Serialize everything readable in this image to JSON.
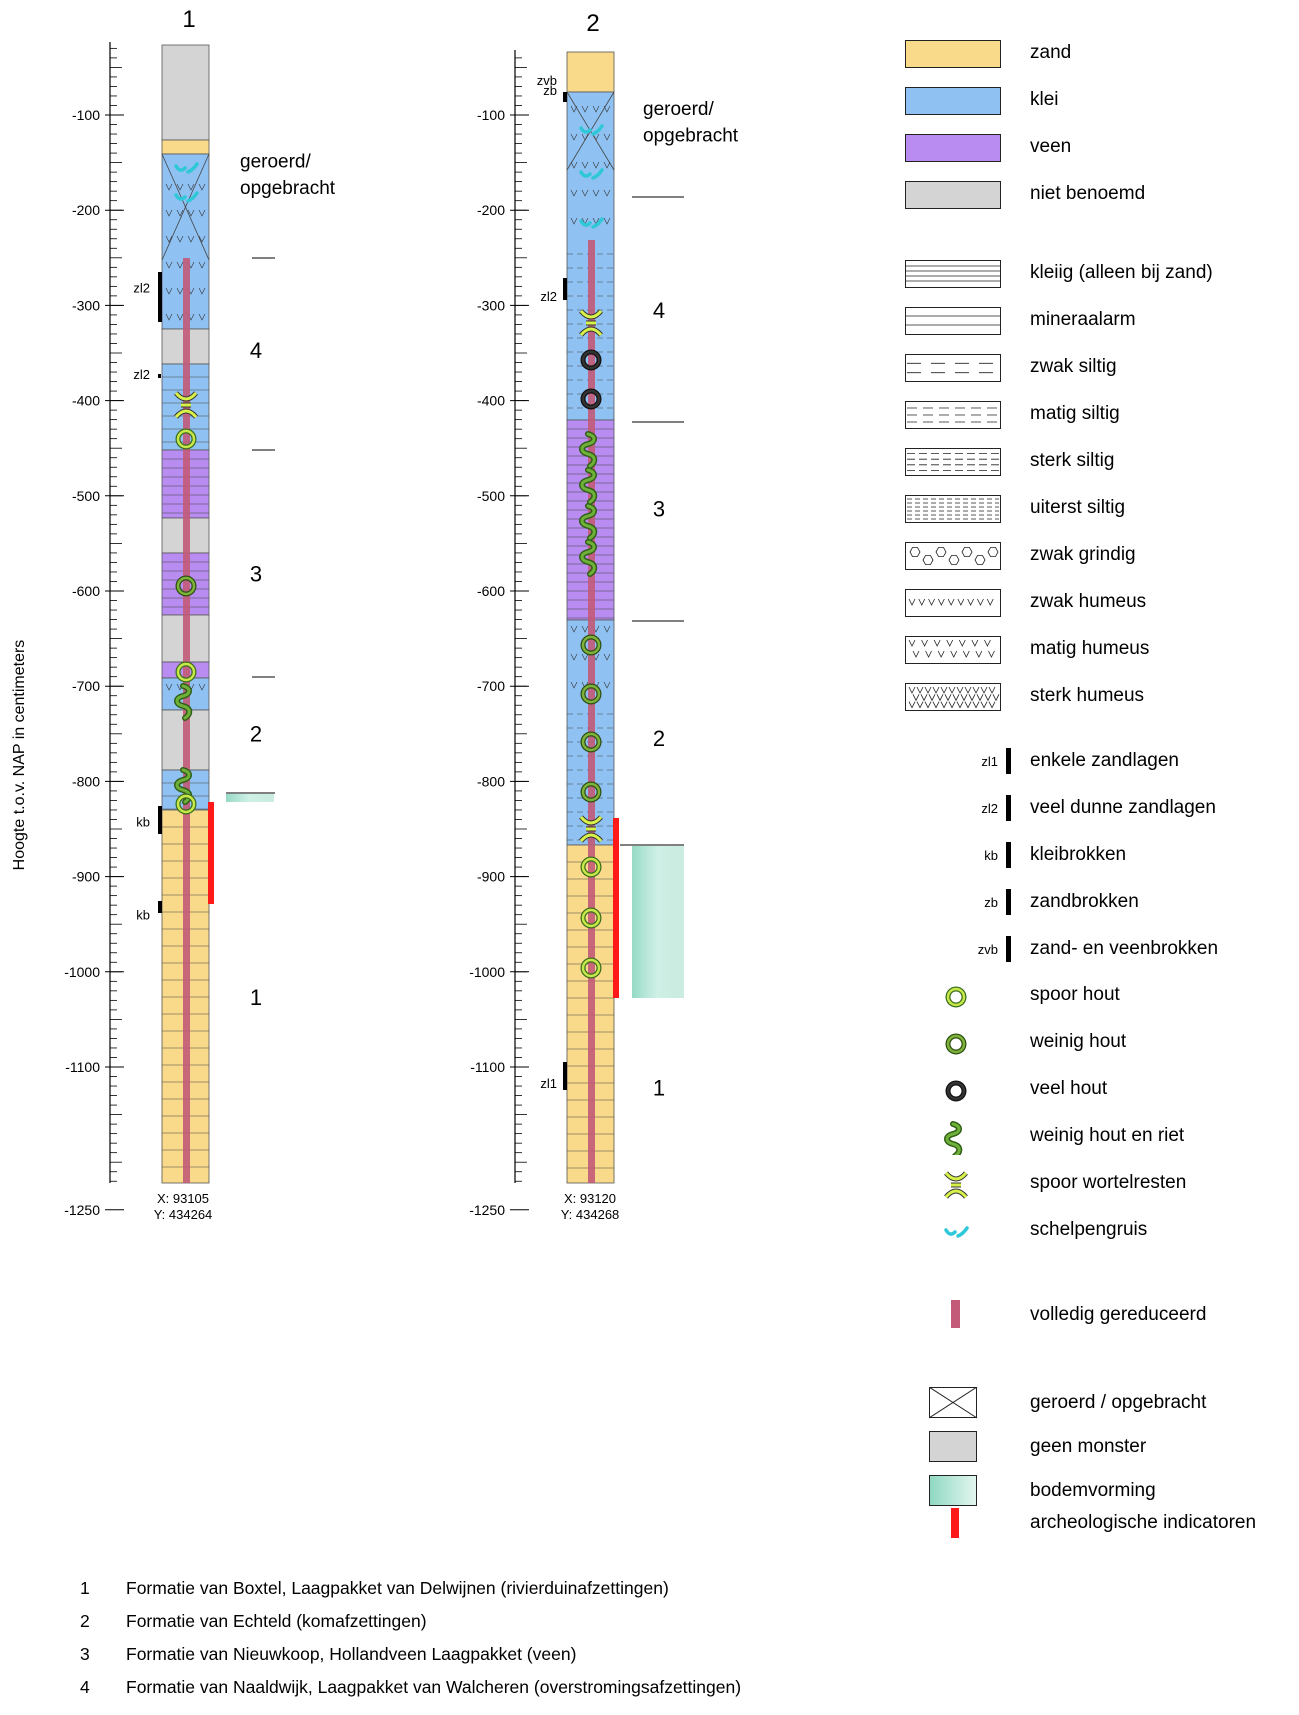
{
  "y_axis_title": "Hoogte t.o.v. NAP in centimeters",
  "colors": {
    "zand": "#f9d98a",
    "klei": "#8fc1f2",
    "veen": "#b88cf0",
    "niet_benoemd": "#d4d4d4",
    "reduced": "#c25a78",
    "archeo": "#ff1a1a",
    "bodem": "#9fdcc8",
    "wood": "#c8e84a",
    "wood_dark": "#3a6e1e",
    "shell": "#2fc8d8"
  },
  "boreholes": [
    {
      "id": "1",
      "title": "1",
      "coord_x": "X: 93105",
      "coord_y": "Y: 434264",
      "ticks": [
        "-100",
        "-200",
        "-300",
        "-400",
        "-500",
        "-600",
        "-700",
        "-800",
        "-900",
        "-1000",
        "-1100",
        "-1250"
      ],
      "unit_labels": [
        {
          "text": "geroerd/",
          "depth": -155
        },
        {
          "text": "opgebracht",
          "depth": -183
        },
        {
          "text": "4",
          "depth": -355
        },
        {
          "text": "3",
          "depth": -590
        },
        {
          "text": "2",
          "depth": -758
        },
        {
          "text": "1",
          "depth": -1035
        }
      ],
      "side_labels": [
        {
          "text": "zl2",
          "depth": -281
        },
        {
          "text": "zl2",
          "depth": -372
        },
        {
          "text": "kb",
          "depth": -842
        },
        {
          "text": "kb",
          "depth": -940
        }
      ]
    },
    {
      "id": "2",
      "title": "2",
      "coord_x": "X: 93120",
      "coord_y": "Y: 434268",
      "ticks": [
        "-100",
        "-200",
        "-300",
        "-400",
        "-500",
        "-600",
        "-700",
        "-800",
        "-900",
        "-1000",
        "-1100",
        "-1250"
      ],
      "unit_labels": [
        {
          "text": "geroerd/",
          "depth": -100
        },
        {
          "text": "opgebracht",
          "depth": -128
        },
        {
          "text": "4",
          "depth": -313
        },
        {
          "text": "3",
          "depth": -522
        },
        {
          "text": "2",
          "depth": -763
        },
        {
          "text": "1",
          "depth": -1130
        }
      ],
      "side_labels": [
        {
          "text": "zvb",
          "depth": -63
        },
        {
          "text": "zb",
          "depth": -74
        },
        {
          "text": "zl2",
          "depth": -290
        },
        {
          "text": "zl1",
          "depth": -1117
        }
      ]
    }
  ],
  "legend": {
    "lithology": [
      {
        "key": "zand",
        "label": "zand"
      },
      {
        "key": "klei",
        "label": "klei"
      },
      {
        "key": "veen",
        "label": "veen"
      },
      {
        "key": "niet_benoemd",
        "label": "niet benoemd"
      }
    ],
    "admixtures": [
      {
        "key": "kleiig",
        "label": "kleiig (alleen bij zand)"
      },
      {
        "key": "mineraalarm",
        "label": "mineraalarm"
      },
      {
        "key": "zwak_siltig",
        "label": "zwak siltig"
      },
      {
        "key": "matig_siltig",
        "label": "matig siltig"
      },
      {
        "key": "sterk_siltig",
        "label": "sterk siltig"
      },
      {
        "key": "uiterst_siltig",
        "label": "uiterst siltig"
      },
      {
        "key": "zwak_grindig",
        "label": "zwak grindig"
      },
      {
        "key": "zwak_humeus",
        "label": "zwak humeus"
      },
      {
        "key": "matig_humeus",
        "label": "matig humeus"
      },
      {
        "key": "sterk_humeus",
        "label": "sterk humeus"
      }
    ],
    "sublayers": [
      {
        "code": "zl1",
        "label": "enkele zandlagen"
      },
      {
        "code": "zl2",
        "label": "veel dunne zandlagen"
      },
      {
        "code": "kb",
        "label": "kleibrokken"
      },
      {
        "code": "zb",
        "label": "zandbrokken"
      },
      {
        "code": "zvb",
        "label": "zand- en veenbrokken"
      }
    ],
    "symbols": [
      {
        "icon": "spoor-hout-icon",
        "label": "spoor hout"
      },
      {
        "icon": "weinig-hout-icon",
        "label": "weinig hout"
      },
      {
        "icon": "veel-hout-icon",
        "label": "veel hout"
      },
      {
        "icon": "hout-en-riet-icon",
        "label": "weinig hout en riet"
      },
      {
        "icon": "wortelresten-icon",
        "label": "spoor wortelresten"
      },
      {
        "icon": "schelpengruis-icon",
        "label": "schelpengruis"
      }
    ],
    "reduced": {
      "label": "volledig gereduceerd"
    },
    "other": [
      {
        "key": "geroerd",
        "label": "geroerd / opgebracht"
      },
      {
        "key": "geen_monster",
        "label": "geen monster"
      },
      {
        "key": "bodemvorming",
        "label": "bodemvorming"
      }
    ],
    "archeo": {
      "label": "archeologische indicatoren"
    }
  },
  "formations": [
    {
      "num": "1",
      "text": "Formatie van Boxtel, Laagpakket van Delwijnen (rivierduinafzettingen)"
    },
    {
      "num": "2",
      "text": "Formatie van Echteld (komafzettingen)"
    },
    {
      "num": "3",
      "text": "Formatie van Nieuwkoop, Hollandveen Laagpakket (veen)"
    },
    {
      "num": "4",
      "text": "Formatie van Naaldwijk, Laagpakket van Walcheren (overstromingsafzettingen)"
    }
  ]
}
